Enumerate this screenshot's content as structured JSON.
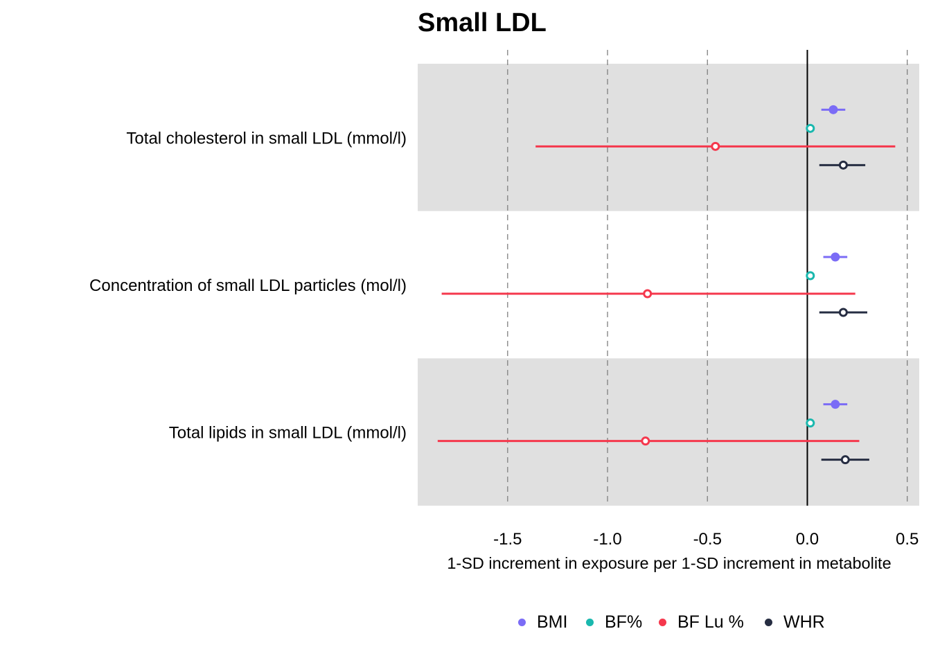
{
  "chart_data": {
    "type": "forest",
    "title": "Small LDL",
    "xlabel": "1-SD increment in exposure per 1-SD increment in metabolite",
    "ylabel": "",
    "xlim": [
      -1.95,
      0.56
    ],
    "x_ticks": [
      -1.5,
      -1.0,
      -0.5,
      0.0,
      0.5
    ],
    "x_tick_labels": [
      "-1.5",
      "-1.0",
      "-0.5",
      "0.0",
      "0.5"
    ],
    "reference_line": 0.0,
    "grid": "dashed vertical lines at major ticks",
    "alternating_row_shading": true,
    "categories": [
      "Total cholesterol in small LDL (mmol/l)",
      "Concentration of small LDL particles (mol/l)",
      "Total lipids in small LDL (mmol/l)"
    ],
    "series": [
      {
        "name": "BMI",
        "color": "#7B6CF6",
        "filled": true,
        "estimates": [
          0.13,
          0.14,
          0.14
        ],
        "ci_low": [
          0.07,
          0.08,
          0.08
        ],
        "ci_high": [
          0.19,
          0.2,
          0.2
        ]
      },
      {
        "name": "BF%",
        "color": "#1AB8AE",
        "filled": false,
        "estimates": [
          0.015,
          0.015,
          0.015
        ],
        "ci_low": [
          0.005,
          0.005,
          0.005
        ],
        "ci_high": [
          0.025,
          0.025,
          0.025
        ]
      },
      {
        "name": "BF Lu %",
        "color": "#F5384D",
        "filled": false,
        "estimates": [
          -0.46,
          -0.8,
          -0.81
        ],
        "ci_low": [
          -1.36,
          -1.83,
          -1.85
        ],
        "ci_high": [
          0.44,
          0.24,
          0.26
        ]
      },
      {
        "name": "WHR",
        "color": "#262D42",
        "filled": false,
        "estimates": [
          0.18,
          0.18,
          0.19
        ],
        "ci_low": [
          0.06,
          0.06,
          0.07
        ],
        "ci_high": [
          0.29,
          0.3,
          0.31
        ]
      }
    ],
    "legend_position": "bottom"
  }
}
